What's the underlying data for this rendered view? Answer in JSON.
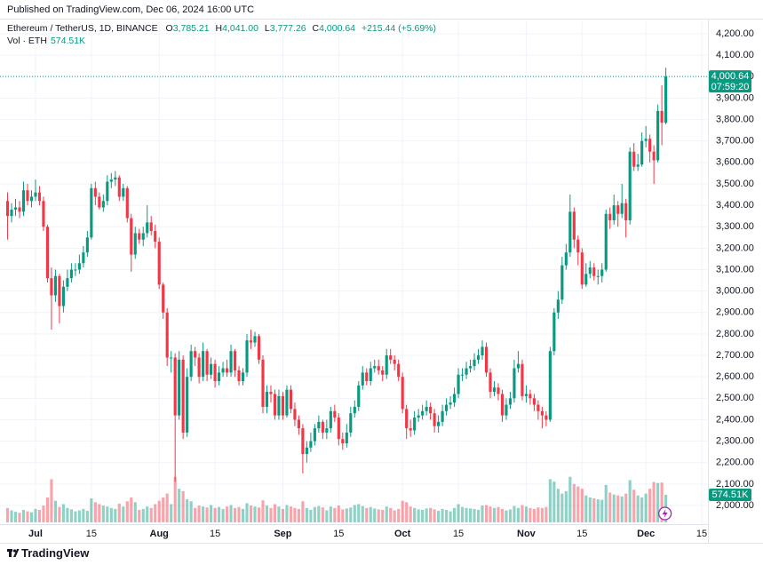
{
  "header": {
    "published": "Published on TradingView.com, Dec 06, 2024 16:00 UTC"
  },
  "chart_data": {
    "type": "candlestick",
    "symbol": "Ethereum / TetherUS, 1D, BINANCE",
    "ohlc_legend": [
      {
        "key": "O",
        "label": "3,785.21"
      },
      {
        "key": "H",
        "label": "4,041.00"
      },
      {
        "key": "L",
        "label": "3,777.26"
      },
      {
        "key": "C",
        "label": "4,000.64"
      }
    ],
    "change": "+215.44 (+5.69%)",
    "volume_title": "Vol · ETH",
    "last_volume_label": "574.51K",
    "last_price_label": "4,000.64",
    "countdown": "07:59:20",
    "up_color": "#089981",
    "down_color": "#f23645",
    "grid": true,
    "open": [
      3420,
      3350,
      3380,
      3390,
      3370,
      3470,
      3420,
      3440,
      3460,
      3420,
      3300,
      3060,
      2980,
      3070,
      2930,
      3020,
      3060,
      3100,
      3100,
      3130,
      3180,
      3250,
      3480,
      3440,
      3390,
      3420,
      3510,
      3520,
      3530,
      3440,
      3480,
      3340,
      3170,
      3270,
      3240,
      3270,
      3320,
      3280,
      3230,
      3030,
      2900,
      2690,
      2690,
      2420,
      2680,
      2340,
      2600,
      2720,
      2690,
      2600,
      2720,
      2610,
      2660,
      2580,
      2620,
      2640,
      2620,
      2720,
      2630,
      2580,
      2620,
      2770,
      2760,
      2790,
      2680,
      2460,
      2530,
      2520,
      2420,
      2510,
      2420,
      2540,
      2450,
      2400,
      2360,
      2240,
      2270,
      2300,
      2360,
      2390,
      2340,
      2360,
      2440,
      2410,
      2310,
      2290,
      2340,
      2430,
      2460,
      2560,
      2620,
      2580,
      2640,
      2650,
      2630,
      2610,
      2700,
      2680,
      2660,
      2600,
      2450,
      2360,
      2350,
      2410,
      2420,
      2440,
      2460,
      2430,
      2370,
      2390,
      2440,
      2470,
      2480,
      2520,
      2610,
      2610,
      2640,
      2650,
      2680,
      2700,
      2740,
      2620,
      2530,
      2550,
      2520,
      2420,
      2470,
      2500,
      2640,
      2660,
      2510,
      2520,
      2500,
      2470,
      2440,
      2420,
      2400,
      2720,
      2900,
      2960,
      3120,
      3180,
      3370,
      3240,
      3180,
      3030,
      3080,
      3110,
      3070,
      3070,
      3100,
      3360,
      3330,
      3400,
      3360,
      3410,
      3330,
      3650,
      3580,
      3590,
      3700,
      3710,
      3650,
      3610,
      3840,
      3785.21
    ],
    "high": [
      3460,
      3410,
      3430,
      3420,
      3510,
      3500,
      3470,
      3520,
      3490,
      3440,
      3310,
      3110,
      3100,
      3080,
      3050,
      3100,
      3130,
      3130,
      3170,
      3210,
      3280,
      3500,
      3510,
      3460,
      3450,
      3540,
      3550,
      3560,
      3540,
      3500,
      3490,
      3360,
      3300,
      3290,
      3300,
      3400,
      3350,
      3310,
      3250,
      3040,
      2920,
      2720,
      2710,
      2720,
      2700,
      2640,
      2750,
      2740,
      2710,
      2760,
      2730,
      2690,
      2680,
      2650,
      2670,
      2680,
      2750,
      2730,
      2650,
      2640,
      2800,
      2820,
      2810,
      2800,
      2700,
      2560,
      2560,
      2540,
      2540,
      2530,
      2560,
      2560,
      2480,
      2420,
      2380,
      2300,
      2340,
      2380,
      2420,
      2400,
      2400,
      2460,
      2470,
      2430,
      2340,
      2380,
      2460,
      2490,
      2580,
      2650,
      2640,
      2670,
      2680,
      2680,
      2650,
      2730,
      2730,
      2700,
      2680,
      2620,
      2470,
      2400,
      2440,
      2450,
      2470,
      2490,
      2480,
      2450,
      2420,
      2470,
      2500,
      2510,
      2550,
      2640,
      2640,
      2670,
      2680,
      2710,
      2730,
      2770,
      2760,
      2640,
      2580,
      2570,
      2540,
      2500,
      2530,
      2680,
      2720,
      2680,
      2560,
      2540,
      2520,
      2490,
      2460,
      2440,
      2740,
      2920,
      3000,
      3160,
      3220,
      3450,
      3390,
      3260,
      3200,
      3130,
      3140,
      3130,
      3100,
      3130,
      3380,
      3390,
      3450,
      3420,
      3500,
      3430,
      3670,
      3690,
      3640,
      3740,
      3770,
      3730,
      3680,
      3870,
      3960,
      4041
    ],
    "low": [
      3240,
      3320,
      3350,
      3340,
      3350,
      3400,
      3390,
      3420,
      3400,
      3280,
      3040,
      2820,
      2950,
      2850,
      2900,
      3000,
      3040,
      3070,
      3080,
      3110,
      3160,
      3240,
      3400,
      3380,
      3370,
      3400,
      3480,
      3490,
      3420,
      3420,
      3320,
      3090,
      3150,
      3220,
      3210,
      3250,
      3260,
      3200,
      3010,
      2870,
      2650,
      2620,
      2110,
      2400,
      2310,
      2320,
      2580,
      2650,
      2570,
      2580,
      2580,
      2590,
      2550,
      2560,
      2600,
      2600,
      2600,
      2600,
      2560,
      2560,
      2600,
      2730,
      2740,
      2660,
      2430,
      2430,
      2480,
      2400,
      2400,
      2400,
      2410,
      2430,
      2370,
      2330,
      2150,
      2200,
      2250,
      2280,
      2340,
      2310,
      2310,
      2340,
      2390,
      2280,
      2260,
      2270,
      2320,
      2410,
      2440,
      2540,
      2560,
      2560,
      2620,
      2610,
      2580,
      2590,
      2660,
      2630,
      2580,
      2430,
      2310,
      2320,
      2330,
      2390,
      2400,
      2420,
      2400,
      2340,
      2340,
      2370,
      2420,
      2450,
      2460,
      2500,
      2580,
      2590,
      2620,
      2630,
      2660,
      2680,
      2600,
      2500,
      2510,
      2490,
      2390,
      2400,
      2450,
      2480,
      2620,
      2490,
      2480,
      2470,
      2440,
      2400,
      2360,
      2370,
      2390,
      2700,
      2870,
      2940,
      3100,
      3160,
      3200,
      3120,
      3010,
      3020,
      3060,
      3050,
      3030,
      3040,
      3090,
      3290,
      3310,
      3300,
      3340,
      3250,
      3310,
      3560,
      3560,
      3580,
      3670,
      3600,
      3500,
      3600,
      3680,
      3777.26
    ],
    "close": [
      3350,
      3380,
      3390,
      3370,
      3470,
      3420,
      3440,
      3460,
      3420,
      3300,
      3060,
      2980,
      3070,
      2930,
      3020,
      3060,
      3100,
      3100,
      3130,
      3180,
      3250,
      3480,
      3440,
      3390,
      3420,
      3510,
      3520,
      3530,
      3440,
      3480,
      3340,
      3170,
      3270,
      3240,
      3270,
      3320,
      3280,
      3230,
      3030,
      2900,
      2690,
      2690,
      2420,
      2680,
      2340,
      2600,
      2720,
      2690,
      2600,
      2720,
      2610,
      2660,
      2580,
      2620,
      2640,
      2620,
      2720,
      2630,
      2580,
      2620,
      2770,
      2760,
      2790,
      2680,
      2460,
      2530,
      2520,
      2420,
      2510,
      2420,
      2540,
      2450,
      2400,
      2360,
      2240,
      2270,
      2300,
      2360,
      2390,
      2340,
      2360,
      2440,
      2410,
      2310,
      2290,
      2340,
      2430,
      2460,
      2560,
      2620,
      2580,
      2640,
      2650,
      2630,
      2610,
      2700,
      2680,
      2660,
      2600,
      2450,
      2360,
      2350,
      2410,
      2420,
      2440,
      2460,
      2430,
      2370,
      2390,
      2440,
      2470,
      2480,
      2520,
      2610,
      2610,
      2640,
      2650,
      2680,
      2700,
      2740,
      2620,
      2530,
      2550,
      2520,
      2420,
      2470,
      2500,
      2640,
      2660,
      2510,
      2520,
      2500,
      2470,
      2440,
      2420,
      2400,
      2720,
      2900,
      2960,
      3120,
      3180,
      3370,
      3240,
      3180,
      3030,
      3080,
      3110,
      3070,
      3070,
      3100,
      3360,
      3330,
      3400,
      3360,
      3410,
      3330,
      3650,
      3580,
      3590,
      3700,
      3710,
      3650,
      3610,
      3840,
      3785.21,
      4000.64
    ],
    "volume": [
      300000,
      250000,
      220000,
      200000,
      260000,
      230000,
      210000,
      280000,
      260000,
      350000,
      520000,
      900000,
      450000,
      320000,
      380000,
      300000,
      270000,
      230000,
      250000,
      280000,
      240000,
      500000,
      420000,
      380000,
      350000,
      330000,
      300000,
      280000,
      390000,
      330000,
      440000,
      520000,
      420000,
      260000,
      280000,
      330000,
      300000,
      380000,
      450000,
      520000,
      600000,
      380000,
      950000,
      700000,
      650000,
      480000,
      440000,
      300000,
      350000,
      330000,
      310000,
      360000,
      300000,
      320000,
      280000,
      330000,
      360000,
      300000,
      320000,
      280000,
      400000,
      350000,
      330000,
      310000,
      460000,
      350000,
      300000,
      380000,
      330000,
      280000,
      360000,
      330000,
      300000,
      280000,
      440000,
      300000,
      260000,
      320000,
      340000,
      310000,
      250000,
      330000,
      300000,
      350000,
      270000,
      290000,
      310000,
      360000,
      380000,
      340000,
      300000,
      320000,
      290000,
      270000,
      260000,
      330000,
      300000,
      250000,
      280000,
      450000,
      420000,
      330000,
      300000,
      270000,
      260000,
      290000,
      300000,
      270000,
      240000,
      280000,
      260000,
      230000,
      300000,
      380000,
      320000,
      300000,
      290000,
      280000,
      260000,
      350000,
      360000,
      330000,
      300000,
      320000,
      280000,
      250000,
      270000,
      340000,
      300000,
      360000,
      330000,
      300000,
      280000,
      310000,
      300000,
      320000,
      900000,
      850000,
      700000,
      600000,
      650000,
      950000,
      800000,
      750000,
      700000,
      560000,
      520000,
      500000,
      480000,
      470000,
      780000,
      620000,
      580000,
      560000,
      540000,
      600000,
      880000,
      680000,
      560000,
      520000,
      600000,
      700000,
      840000,
      820000,
      830000,
      574510
    ],
    "xlim": [
      -1.9,
      175.55
    ],
    "xticks": [
      {
        "value": 7,
        "label": "Jul"
      },
      {
        "value": 21,
        "label": "15"
      },
      {
        "value": 38,
        "label": "Aug"
      },
      {
        "value": 52,
        "label": "15"
      },
      {
        "value": 69,
        "label": "Sep"
      },
      {
        "value": 83,
        "label": "15"
      },
      {
        "value": 99,
        "label": "Oct"
      },
      {
        "value": 113,
        "label": "15"
      },
      {
        "value": 130,
        "label": "Nov"
      },
      {
        "value": 144,
        "label": "15"
      },
      {
        "value": 160,
        "label": "Dec"
      },
      {
        "value": 174,
        "label": "15"
      }
    ],
    "ylim": [
      1913,
      4258
    ],
    "yticks": [
      {
        "value": 2000,
        "label": "2,000.00"
      },
      {
        "value": 2100,
        "label": "2,100.00"
      },
      {
        "value": 2200,
        "label": "2,200.00"
      },
      {
        "value": 2300,
        "label": "2,300.00"
      },
      {
        "value": 2400,
        "label": "2,400.00"
      },
      {
        "value": 2500,
        "label": "2,500.00"
      },
      {
        "value": 2600,
        "label": "2,600.00"
      },
      {
        "value": 2700,
        "label": "2,700.00"
      },
      {
        "value": 2800,
        "label": "2,800.00"
      },
      {
        "value": 2900,
        "label": "2,900.00"
      },
      {
        "value": 3000,
        "label": "3,000.00"
      },
      {
        "value": 3100,
        "label": "3,100.00"
      },
      {
        "value": 3200,
        "label": "3,200.00"
      },
      {
        "value": 3300,
        "label": "3,300.00"
      },
      {
        "value": 3400,
        "label": "3,400.00"
      },
      {
        "value": 3500,
        "label": "3,500.00"
      },
      {
        "value": 3600,
        "label": "3,600.00"
      },
      {
        "value": 3700,
        "label": "3,700.00"
      },
      {
        "value": 3800,
        "label": "3,800.00"
      },
      {
        "value": 3900,
        "label": "3,900.00"
      },
      {
        "value": 4000,
        "label": "4,000.00"
      },
      {
        "value": 4100,
        "label": "4,100.00"
      },
      {
        "value": 4200,
        "label": "4,200.00"
      }
    ],
    "y2lim": [
      0,
      1000000
    ]
  },
  "footer": {
    "brand": "TradingView"
  }
}
